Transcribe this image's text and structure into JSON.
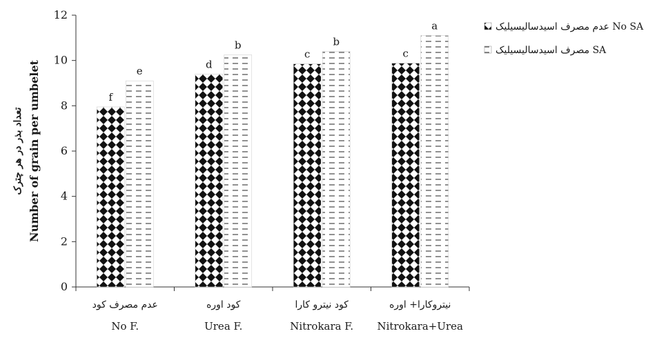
{
  "chart_data": {
    "type": "bar",
    "categories": [
      {
        "fa": "عدم مصرف کود",
        "en": "No F."
      },
      {
        "fa": "کود اوره",
        "en": "Urea F."
      },
      {
        "fa": "کود نیترو کارا",
        "en": "Nitrokara F."
      },
      {
        "fa": "نیتروکارا+ اوره",
        "en": "Nitrokara+Urea"
      }
    ],
    "series": [
      {
        "name": "عدم مصرف اسیدسالیسیلیک No SA",
        "values": [
          7.95,
          9.4,
          9.85,
          9.88
        ],
        "labels": [
          "f",
          "d",
          "c",
          "c"
        ],
        "pattern": "diamond-check"
      },
      {
        "name": "مصرف اسیدسالیسیلیک  SA",
        "values": [
          9.1,
          10.25,
          10.4,
          11.1
        ],
        "labels": [
          "e",
          "b",
          "b",
          "a"
        ],
        "pattern": "dashes"
      }
    ],
    "ylabel_fa": "تعداد بذر در هر چترک",
    "ylabel_en": "Number of grain per umbelet",
    "ylim": [
      0,
      12
    ],
    "yticks": [
      "0",
      "2",
      "4",
      "6",
      "8",
      "10",
      "12"
    ],
    "grid": false,
    "legend_position": "top-right"
  }
}
